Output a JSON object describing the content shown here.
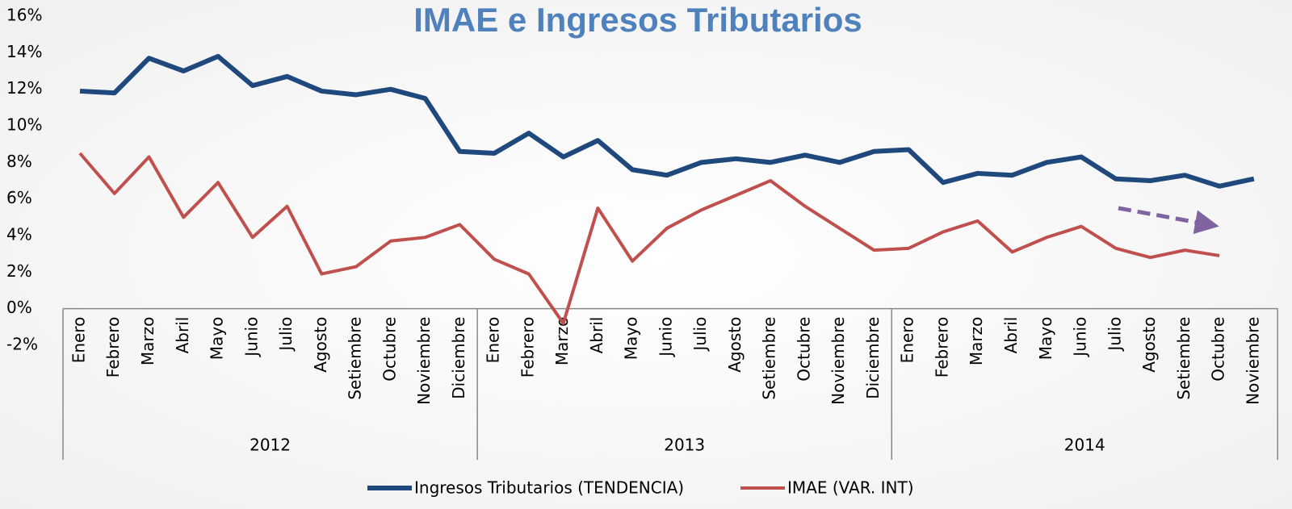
{
  "chart_data": {
    "type": "line",
    "title": "IMAE e  Ingresos Tributarios",
    "groups": [
      {
        "name": "2012",
        "categories": [
          "Enero",
          "Febrero",
          "Marzo",
          "Abril",
          "Mayo",
          "Junio",
          "Julio",
          "Agosto",
          "Setiembre",
          "Octubre",
          "Noviembre",
          "Diciembre"
        ]
      },
      {
        "name": "2013",
        "categories": [
          "Enero",
          "Febrero",
          "Marzo",
          "Abril",
          "Mayo",
          "Junio",
          "Julio",
          "Agosto",
          "Setiembre",
          "Octubre",
          "Noviembre",
          "Diciembre"
        ]
      },
      {
        "name": "2014",
        "categories": [
          "Enero",
          "Febrero",
          "Marzo",
          "Abril",
          "Mayo",
          "Junio",
          "Julio",
          "Agosto",
          "Setiembre",
          "Octubre",
          "Noviembre"
        ]
      }
    ],
    "series": [
      {
        "name": "Ingresos Tributarios (TENDENCIA)",
        "color": "#1f497d",
        "values": [
          11.9,
          11.8,
          13.7,
          13.0,
          13.8,
          12.2,
          12.7,
          11.9,
          11.7,
          12.0,
          11.5,
          8.6,
          8.5,
          9.6,
          8.3,
          9.2,
          7.6,
          7.3,
          8.0,
          8.2,
          8.0,
          8.4,
          8.0,
          8.6,
          8.7,
          6.9,
          7.4,
          7.3,
          8.0,
          8.3,
          7.1,
          7.0,
          7.3,
          6.7,
          7.1
        ]
      },
      {
        "name": "IMAE (VAR. INT)",
        "color": "#c0504d",
        "values": [
          8.5,
          6.3,
          8.3,
          5.0,
          6.9,
          3.9,
          5.6,
          1.9,
          2.3,
          3.7,
          3.9,
          4.6,
          2.7,
          1.9,
          -0.8,
          5.5,
          2.6,
          4.4,
          5.4,
          6.2,
          7.0,
          5.6,
          4.4,
          3.2,
          3.3,
          4.2,
          4.8,
          3.1,
          3.9,
          4.5,
          3.3,
          2.8,
          3.2,
          2.9,
          null
        ]
      }
    ],
    "ylim": [
      -2,
      16
    ],
    "yticks": [
      {
        "value": -2,
        "label": "-2%"
      },
      {
        "value": 0,
        "label": "0%"
      },
      {
        "value": 2,
        "label": "2%"
      },
      {
        "value": 4,
        "label": "4%"
      },
      {
        "value": 6,
        "label": "6%"
      },
      {
        "value": 8,
        "label": "8%"
      },
      {
        "value": 10,
        "label": "10%"
      },
      {
        "value": 12,
        "label": "12%"
      },
      {
        "value": 14,
        "label": "14%"
      },
      {
        "value": 16,
        "label": "16%"
      }
    ],
    "legend": "bottom"
  }
}
